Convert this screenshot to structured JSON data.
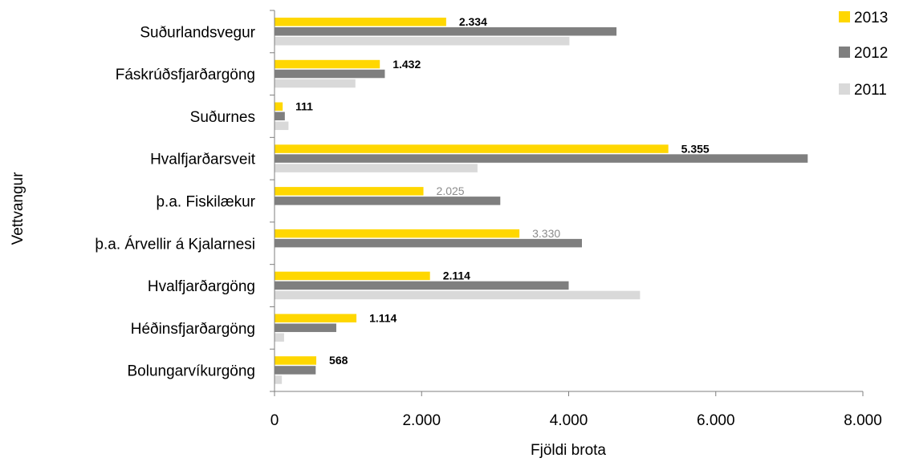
{
  "chart_data": {
    "type": "bar",
    "orientation": "horizontal",
    "title": "",
    "xlabel": "Fjöldi brota",
    "ylabel": "Vettvangur",
    "xlim": [
      0,
      8000
    ],
    "x_ticks": [
      0,
      2000,
      4000,
      6000,
      8000
    ],
    "x_tick_labels": [
      "0",
      "2.000",
      "4.000",
      "6.000",
      "8.000"
    ],
    "grid": false,
    "legend_position": "top-right",
    "categories": [
      "Suðurlandsvegur",
      "Fáskrúðsfjarðargöng",
      "Suðurnes",
      "Hvalfjarðarsveit",
      "þ.a. Fiskilækur",
      "þ.a. Árvellir á Kjalarnesi",
      "Hvalfjarðargöng",
      "Héðinsfjarðargöng",
      "Bolungarvíkurgöng"
    ],
    "series": [
      {
        "name": "2013",
        "color": "#ffd700",
        "values": [
          2334,
          1432,
          111,
          5355,
          2025,
          3330,
          2114,
          1114,
          568
        ]
      },
      {
        "name": "2012",
        "color": "#7f7f7f",
        "values": [
          4650,
          1500,
          140,
          7250,
          3070,
          4180,
          4000,
          840,
          560
        ]
      },
      {
        "name": "2011",
        "color": "#d9d9d9",
        "values": [
          4010,
          1100,
          190,
          2760,
          null,
          null,
          4970,
          130,
          100
        ]
      }
    ],
    "data_labels": {
      "series": "2013",
      "texts": [
        "2.334",
        "1.432",
        "111",
        "5.355",
        "2.025",
        "3.330",
        "2.114",
        "1.114",
        "568"
      ],
      "style": [
        "bold",
        "bold",
        "bold",
        "bold",
        "muted",
        "muted",
        "bold",
        "bold",
        "bold"
      ]
    }
  }
}
